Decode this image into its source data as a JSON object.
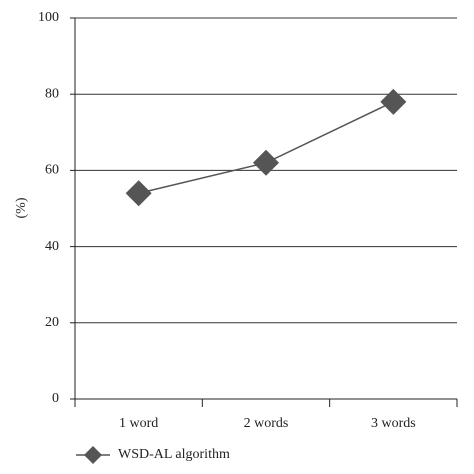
{
  "chart_data": {
    "type": "line",
    "y_label": "(%)",
    "categories": [
      "1 word",
      "2 words",
      "3 words"
    ],
    "series": [
      {
        "name": "WSD-AL algorithm",
        "color": "#555555",
        "values": [
          54,
          62,
          78
        ]
      }
    ],
    "ylim": [
      0,
      100
    ],
    "yticks": [
      0,
      20,
      40,
      60,
      80,
      100
    ],
    "grid": true,
    "legend": "bottom"
  }
}
